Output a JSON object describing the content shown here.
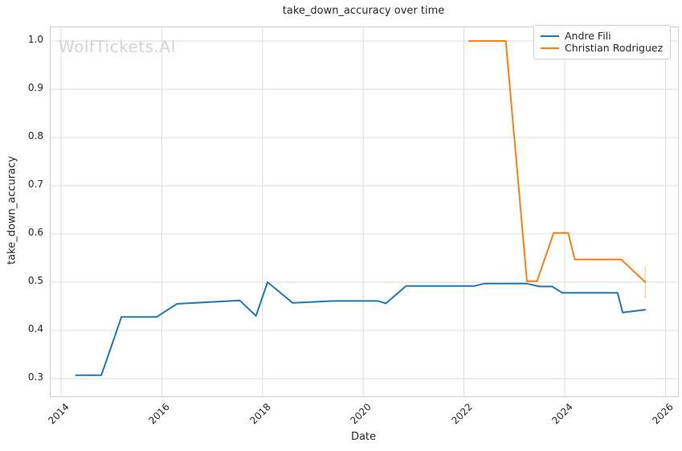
{
  "figure": {
    "title": "take_down_accuracy over time",
    "watermark": "WolfTickets.AI",
    "xlabel": "Date",
    "ylabel": "take_down_accuracy"
  },
  "legend": {
    "position": "upper right",
    "items": [
      {
        "label": "Andre Fili",
        "color": "#1f77b4"
      },
      {
        "label": "Christian Rodriguez",
        "color": "#ff7f0e"
      }
    ]
  },
  "colors": {
    "series_blue": "#1f77b4",
    "series_orange": "#ff7f0e",
    "grid": "#dcdcdc",
    "spine": "#cccccc",
    "text": "#262626",
    "watermark": "#d4d4d4"
  },
  "chart_data": {
    "type": "line",
    "title": "take_down_accuracy over time",
    "xlabel": "Date",
    "ylabel": "take_down_accuracy",
    "grid": true,
    "legend_position": "upper right",
    "xlim": [
      2013.8,
      2026.25
    ],
    "ylim": [
      0.263,
      1.028
    ],
    "x_ticks": [
      "2014",
      "2016",
      "2018",
      "2020",
      "2022",
      "2024",
      "2026"
    ],
    "x_tick_values": [
      2014,
      2016,
      2018,
      2020,
      2022,
      2024,
      2026
    ],
    "y_ticks": [
      "0.3",
      "0.4",
      "0.5",
      "0.6",
      "0.7",
      "0.8",
      "0.9",
      "1.0"
    ],
    "y_tick_values": [
      0.3,
      0.4,
      0.5,
      0.6,
      0.7,
      0.8,
      0.9,
      1.0
    ],
    "series": [
      {
        "name": "Andre Fili",
        "color": "#1f77b4",
        "points": [
          [
            2014.3,
            0.307
          ],
          [
            2014.8,
            0.307
          ],
          [
            2015.2,
            0.428
          ],
          [
            2015.9,
            0.428
          ],
          [
            2016.3,
            0.455
          ],
          [
            2016.8,
            0.458
          ],
          [
            2017.55,
            0.462
          ],
          [
            2017.87,
            0.43
          ],
          [
            2018.1,
            0.5
          ],
          [
            2018.6,
            0.457
          ],
          [
            2019.4,
            0.461
          ],
          [
            2020.3,
            0.461
          ],
          [
            2020.45,
            0.456
          ],
          [
            2020.85,
            0.492
          ],
          [
            2022.2,
            0.492
          ],
          [
            2022.4,
            0.497
          ],
          [
            2023.25,
            0.497
          ],
          [
            2023.5,
            0.491
          ],
          [
            2023.75,
            0.491
          ],
          [
            2023.95,
            0.478
          ],
          [
            2025.05,
            0.478
          ],
          [
            2025.15,
            0.437
          ],
          [
            2025.6,
            0.443
          ]
        ]
      },
      {
        "name": "Christian Rodriguez",
        "color": "#ff7f0e",
        "points": [
          [
            2022.1,
            1.0
          ],
          [
            2022.83,
            1.0
          ],
          [
            2023.25,
            0.502
          ],
          [
            2023.45,
            0.502
          ],
          [
            2023.78,
            0.602
          ],
          [
            2024.07,
            0.602
          ],
          [
            2024.2,
            0.547
          ],
          [
            2025.12,
            0.547
          ],
          [
            2025.6,
            0.5
          ]
        ],
        "terminal_bar": {
          "x": 2025.6,
          "y_low": 0.466,
          "y_high": 0.532
        }
      }
    ]
  }
}
